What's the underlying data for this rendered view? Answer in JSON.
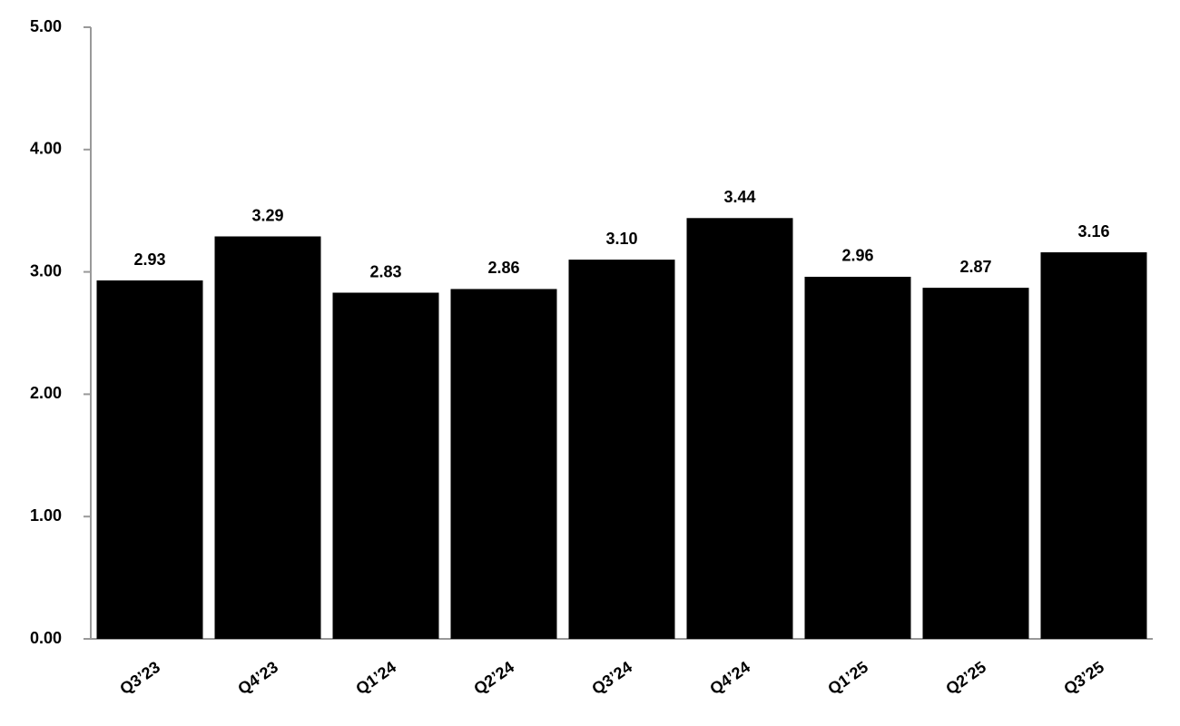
{
  "chart_data": {
    "type": "bar",
    "categories": [
      "Q3’23",
      "Q4’23",
      "Q1’24",
      "Q2’24",
      "Q3’24",
      "Q4’24",
      "Q1’25",
      "Q2’25",
      "Q3’25"
    ],
    "values": [
      2.93,
      3.29,
      2.83,
      2.86,
      3.1,
      3.44,
      2.96,
      2.87,
      3.16
    ],
    "value_labels": [
      "2.93",
      "3.29",
      "2.83",
      "2.86",
      "3.10",
      "3.44",
      "2.96",
      "2.87",
      "3.16"
    ],
    "color": "#000000",
    "ylim": [
      0,
      5
    ],
    "yticks": [
      {
        "value": 0,
        "label": "0.00"
      },
      {
        "value": 1,
        "label": "1.00"
      },
      {
        "value": 2,
        "label": "2.00"
      },
      {
        "value": 3,
        "label": "3.00"
      },
      {
        "value": 4,
        "label": "4.00"
      },
      {
        "value": 5,
        "label": "5.00"
      }
    ],
    "grid": false
  }
}
